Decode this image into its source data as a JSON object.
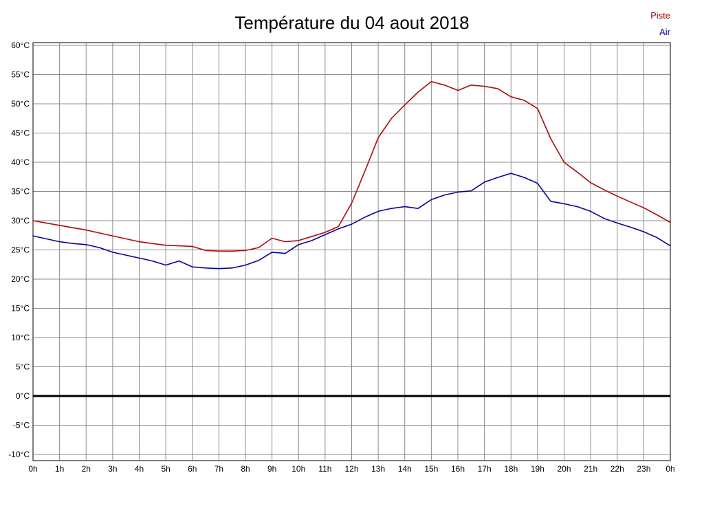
{
  "chart_data": {
    "type": "line",
    "title": "Température du 04 aout 2018",
    "xlabel": "",
    "ylabel": "",
    "xlim": [
      0,
      24
    ],
    "ylim": [
      -10,
      60
    ],
    "y_tick_step": 5,
    "grid": true,
    "grid_color": "#8c8c8c",
    "x_tick_labels": [
      "0h",
      "1h",
      "2h",
      "3h",
      "4h",
      "5h",
      "6h",
      "7h",
      "8h",
      "9h",
      "10h",
      "11h",
      "12h",
      "13h",
      "14h",
      "15h",
      "16h",
      "17h",
      "18h",
      "19h",
      "20h",
      "21h",
      "22h",
      "23h",
      "0h"
    ],
    "y_tick_labels": [
      "60°C",
      "55°C",
      "50°C",
      "45°C",
      "40°C",
      "35°C",
      "30°C",
      "25°C",
      "20°C",
      "15°C",
      "10°C",
      "5°C",
      "0°C",
      "-5°C",
      "-10°C"
    ],
    "zero_line": {
      "value": 0,
      "color": "#000000",
      "width": 3
    },
    "legend": {
      "position": "top-right",
      "entries": [
        {
          "name": "Piste",
          "color": "#cc0000"
        },
        {
          "name": "Air",
          "color": "#0000cc"
        }
      ]
    },
    "x": [
      0,
      0.5,
      1,
      1.5,
      2,
      2.5,
      3,
      3.5,
      4,
      4.5,
      5,
      5.5,
      6,
      6.5,
      7,
      7.5,
      8,
      8.5,
      9,
      9.5,
      10,
      10.5,
      11,
      11.5,
      12,
      12.5,
      13,
      13.5,
      14,
      14.5,
      15,
      15.5,
      16,
      16.5,
      17,
      17.5,
      18,
      18.5,
      19,
      19.5,
      20,
      20.5,
      21,
      21.5,
      22,
      22.5,
      23,
      23.5,
      24
    ],
    "series": [
      {
        "name": "Piste",
        "color": "#cc0000",
        "values": [
          30.0,
          29.6,
          29.2,
          28.8,
          28.4,
          27.9,
          27.4,
          26.9,
          26.4,
          26.1,
          25.8,
          25.7,
          25.6,
          24.9,
          24.8,
          24.8,
          24.9,
          25.4,
          27.0,
          26.4,
          26.6,
          27.3,
          28.0,
          29.0,
          33.0,
          38.5,
          44.2,
          47.5,
          49.8,
          52.0,
          53.8,
          53.2,
          52.3,
          53.2,
          53.0,
          52.6,
          51.2,
          50.6,
          49.2,
          44.0,
          40.0,
          38.3,
          36.5,
          35.3,
          34.2,
          33.2,
          32.2,
          31.0,
          29.7
        ]
      },
      {
        "name": "Air",
        "color": "#0000cc",
        "values": [
          27.4,
          26.9,
          26.4,
          26.1,
          25.9,
          25.4,
          24.6,
          24.1,
          23.6,
          23.1,
          22.4,
          23.1,
          22.1,
          21.9,
          21.8,
          21.9,
          22.4,
          23.2,
          24.6,
          24.4,
          25.9,
          26.6,
          27.6,
          28.6,
          29.4,
          30.6,
          31.6,
          32.1,
          32.4,
          32.1,
          33.6,
          34.4,
          34.9,
          35.1,
          36.6,
          37.4,
          38.1,
          37.4,
          36.4,
          33.3,
          32.9,
          32.4,
          31.6,
          30.4,
          29.6,
          28.9,
          28.1,
          27.1,
          25.7
        ]
      }
    ]
  }
}
